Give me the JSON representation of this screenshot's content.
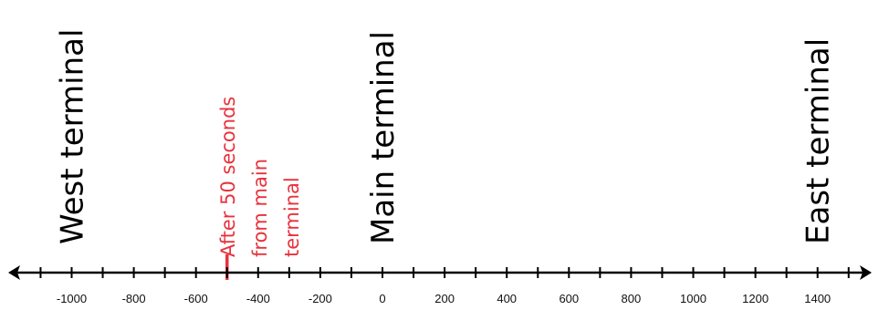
{
  "terminals": [
    {
      "label": "West terminal",
      "position": -1000
    },
    {
      "label": "Main terminal",
      "position": 0
    },
    {
      "label": "East terminal",
      "position": 1400
    }
  ],
  "marker": {
    "lines": [
      "After 50 seconds",
      "from main",
      "terminal"
    ],
    "position": -500,
    "color": "#e8323c"
  },
  "number_line": {
    "ticks_labeled": [
      -1000,
      -800,
      -600,
      -400,
      -200,
      0,
      200,
      400,
      600,
      800,
      1000,
      1200,
      1400
    ],
    "tick_labels": [
      "-1000",
      "-800",
      "-600",
      "-400",
      "-200",
      "0",
      "200",
      "400",
      "600",
      "800",
      "1000",
      "1200",
      "1400"
    ],
    "minor_step": 100,
    "range": [
      -1100,
      1500
    ],
    "arrows": "both",
    "color": "#000000"
  }
}
